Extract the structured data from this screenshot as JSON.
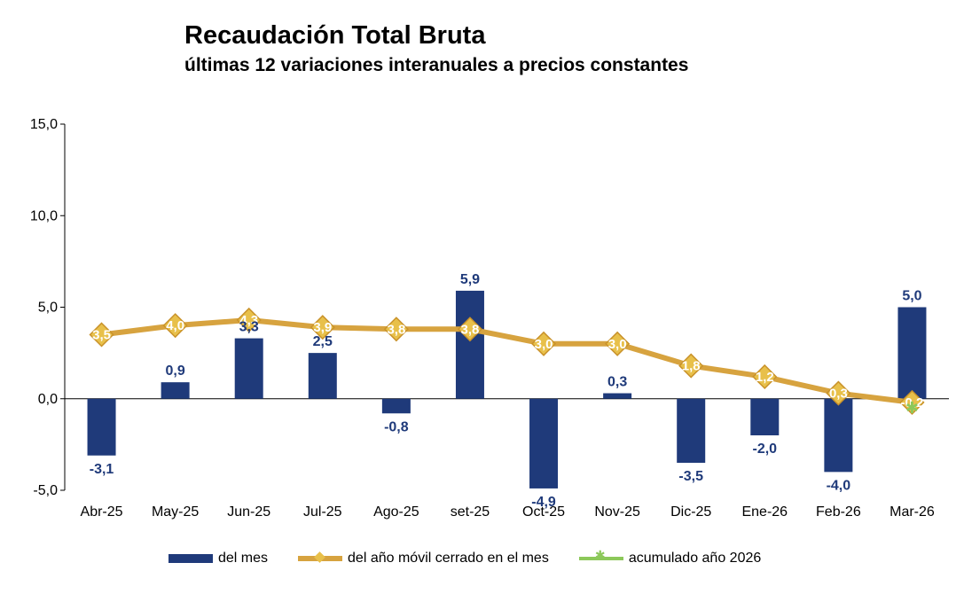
{
  "title": "Recaudación Total Bruta",
  "subtitle": "últimas 12 variaciones interanuales a precios constantes",
  "legend": {
    "del_mes": "del mes",
    "movil": "del año móvil cerrado en el mes",
    "acumulado": "acumulado año 2026"
  },
  "chart_data": {
    "type": "bar",
    "title": "Recaudación Total Bruta",
    "subtitle": "últimas 12 variaciones interanuales a precios constantes",
    "categories": [
      "Abr-25",
      "May-25",
      "Jun-25",
      "Jul-25",
      "Ago-25",
      "set-25",
      "Oct-25",
      "Nov-25",
      "Dic-25",
      "Ene-26",
      "Feb-26",
      "Mar-26"
    ],
    "series": [
      {
        "name": "del mes",
        "type": "bar",
        "color": "#1f3a7a",
        "values": [
          -3.1,
          0.9,
          3.3,
          2.5,
          -0.8,
          5.9,
          -4.9,
          0.3,
          -3.5,
          -2.0,
          -4.0,
          5.0
        ],
        "labels": [
          "-3,1",
          "0,9",
          "3,3",
          "2,5",
          "-0,8",
          "5,9",
          "-4,9",
          "0,3",
          "-3,5",
          "-2,0",
          "-4,0",
          "5,0"
        ]
      },
      {
        "name": "del año móvil cerrado en el mes",
        "type": "line",
        "color": "#d7a33f",
        "values": [
          3.5,
          4.0,
          4.3,
          3.9,
          3.8,
          3.8,
          3.0,
          3.0,
          1.8,
          1.2,
          0.3,
          -0.2
        ],
        "labels": [
          "3,5",
          "4,0",
          "4,3",
          "3,9",
          "3,8",
          "3,8",
          "3,0",
          "3,0",
          "1,8",
          "1,2",
          "0,3",
          "-0,2"
        ]
      },
      {
        "name": "acumulado año 2026",
        "type": "line",
        "color": "#8cc85a",
        "values": [
          null,
          null,
          null,
          null,
          null,
          null,
          null,
          null,
          null,
          null,
          null,
          -0.5
        ],
        "labels": []
      }
    ],
    "yticks": [
      "15,0",
      "10,0",
      "5,0",
      "0,0",
      "-5,0"
    ],
    "ytick_values": [
      15,
      10,
      5,
      0,
      -5
    ],
    "ylim": [
      -5,
      15
    ],
    "legend_position": "bottom"
  }
}
